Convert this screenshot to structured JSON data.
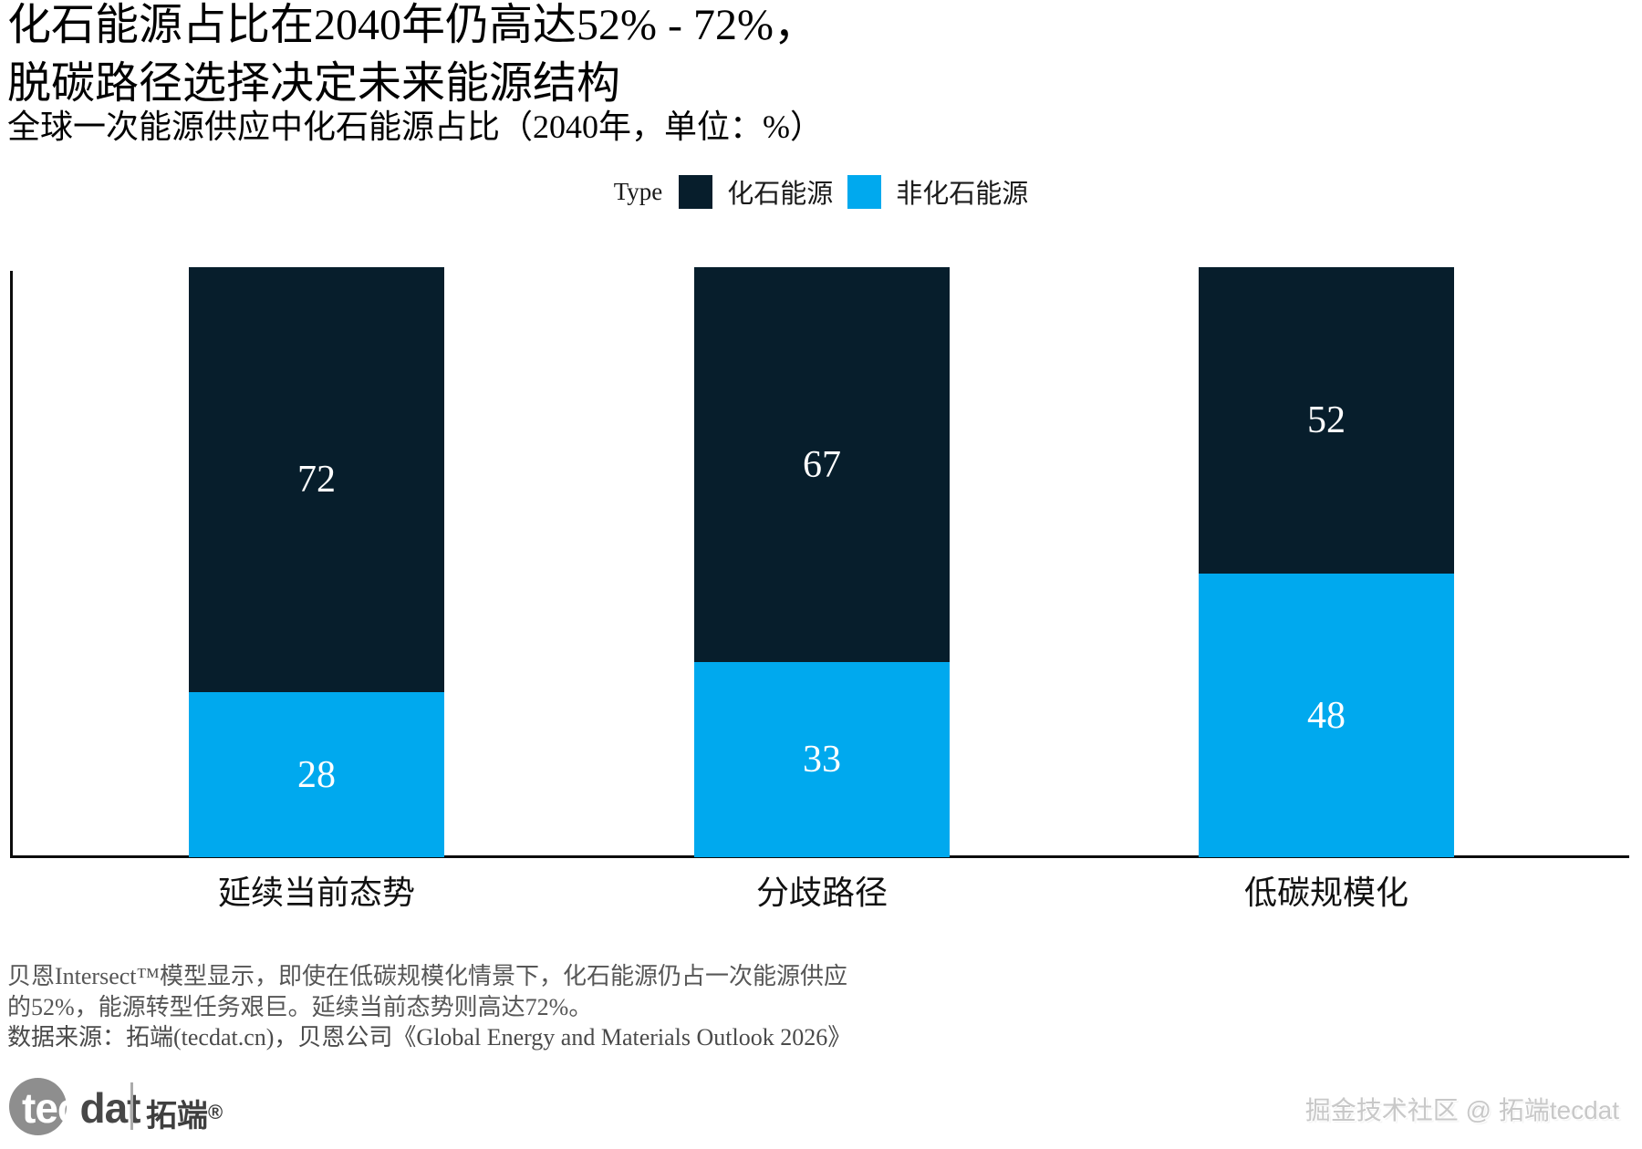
{
  "header": {
    "title_line1": "化石能源占比在2040年仍高达52% - 72%，",
    "title_line2": "脱碳路径选择决定未来能源结构",
    "subtitle": "全球一次能源供应中化石能源占比（2040年，单位：%）"
  },
  "legend": {
    "label": "Type",
    "items": [
      {
        "name": "化石能源",
        "color": "#071e2c"
      },
      {
        "name": "非化石能源",
        "color": "#00a9ee"
      }
    ]
  },
  "chart_data": {
    "type": "bar",
    "stacked": true,
    "title": "化石能源占比在2040年仍高达52% - 72%，脱碳路径选择决定未来能源结构",
    "subtitle": "全球一次能源供应中化石能源占比（2040年，单位：%）",
    "unit": "%",
    "categories": [
      "延续当前态势",
      "分歧路径",
      "低碳规模化"
    ],
    "series": [
      {
        "name": "化石能源",
        "color": "#071e2c",
        "values": [
          72,
          67,
          52
        ]
      },
      {
        "name": "非化石能源",
        "color": "#00a9ee",
        "values": [
          28,
          33,
          48
        ]
      }
    ],
    "ylim": [
      0,
      100
    ],
    "legend_position": "top",
    "grid": false
  },
  "notes": {
    "line1": "贝恩Intersect™模型显示，即使在低碳规模化情景下，化石能源仍占一次能源供应",
    "line2": "的52%，能源转型任务艰巨。延续当前态势则高达72%。",
    "source": "数据来源：拓端(tecdat.cn)，贝恩公司《Global Energy and Materials Outlook 2026》"
  },
  "footer": {
    "logo": {
      "part1": "tec",
      "part2": "dat",
      "cn": "拓端",
      "reg": "®"
    },
    "watermark": "掘金技术社区 @ 拓端tecdat"
  }
}
